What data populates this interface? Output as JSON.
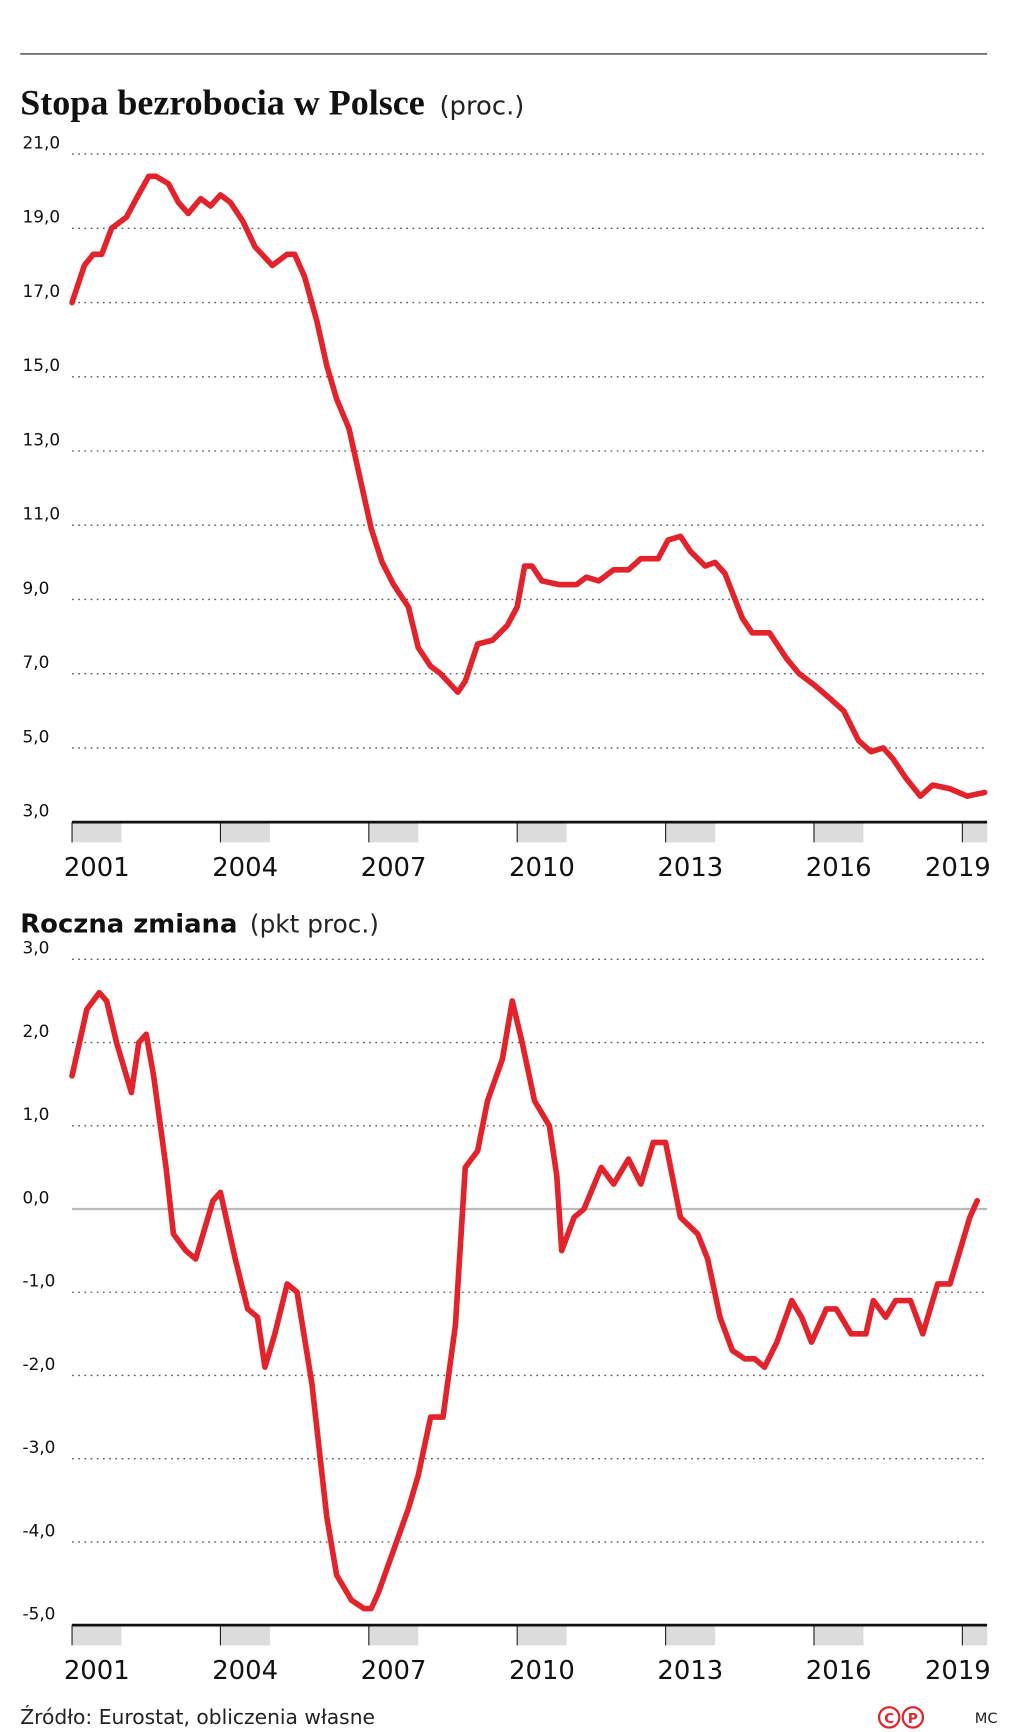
{
  "chart_data": [
    {
      "type": "line",
      "title": "Stopa bezrobocia w Polsce",
      "unit": "(proc.)",
      "color": "#e3232c",
      "grid": true,
      "x": [
        2001.0,
        2001.25,
        2001.43,
        2001.6,
        2001.8,
        2002.1,
        2002.3,
        2002.55,
        2002.7,
        2002.95,
        2003.15,
        2003.35,
        2003.6,
        2003.8,
        2004.0,
        2004.2,
        2004.45,
        2004.7,
        2005.05,
        2005.35,
        2005.5,
        2005.7,
        2005.95,
        2006.15,
        2006.35,
        2006.6,
        2006.8,
        2007.05,
        2007.27,
        2007.5,
        2007.8,
        2008.0,
        2008.25,
        2008.45,
        2008.8,
        2008.95,
        2009.2,
        2009.5,
        2009.8,
        2010.0,
        2010.15,
        2010.3,
        2010.5,
        2010.85,
        2011.2,
        2011.4,
        2011.65,
        2011.95,
        2012.25,
        2012.5,
        2012.85,
        2013.05,
        2013.3,
        2013.5,
        2013.8,
        2014.0,
        2014.2,
        2014.55,
        2014.75,
        2015.1,
        2015.45,
        2015.7,
        2016.0,
        2016.35,
        2016.6,
        2016.9,
        2017.15,
        2017.4,
        2017.6,
        2017.85,
        2018.15,
        2018.4,
        2018.75,
        2019.1,
        2019.45
      ],
      "values": [
        17.0,
        18.0,
        18.3,
        18.3,
        19.0,
        19.3,
        19.8,
        20.4,
        20.4,
        20.2,
        19.7,
        19.4,
        19.8,
        19.6,
        19.9,
        19.7,
        19.2,
        18.5,
        18.0,
        18.3,
        18.3,
        17.7,
        16.5,
        15.3,
        14.4,
        13.6,
        12.4,
        10.9,
        10.0,
        9.4,
        8.8,
        7.7,
        7.2,
        7.0,
        6.5,
        6.8,
        7.8,
        7.9,
        8.3,
        8.8,
        9.9,
        9.9,
        9.5,
        9.4,
        9.4,
        9.6,
        9.5,
        9.8,
        9.8,
        10.1,
        10.1,
        10.6,
        10.7,
        10.3,
        9.9,
        10.0,
        9.7,
        8.5,
        8.1,
        8.1,
        7.4,
        7.0,
        6.7,
        6.3,
        6.0,
        5.2,
        4.9,
        5.0,
        4.7,
        4.2,
        3.7,
        4.0,
        3.9,
        3.7,
        3.8
      ],
      "xlim": [
        2001,
        2019.5
      ],
      "xticks": [
        2001,
        2004,
        2007,
        2010,
        2013,
        2016,
        2019
      ],
      "ylim": [
        3,
        21
      ],
      "yticks": [
        {
          "value": 3,
          "label": "3,0"
        },
        {
          "value": 5,
          "label": "5,0"
        },
        {
          "value": 7,
          "label": "7,0"
        },
        {
          "value": 9,
          "label": "9,0"
        },
        {
          "value": 11,
          "label": "11,0"
        },
        {
          "value": 13,
          "label": "13,0"
        },
        {
          "value": 15,
          "label": "15,0"
        },
        {
          "value": 17,
          "label": "17,0"
        },
        {
          "value": 19,
          "label": "19,0"
        },
        {
          "value": 21,
          "label": "21,0"
        }
      ]
    },
    {
      "type": "line",
      "title": "Roczna zmiana",
      "unit": "(pkt proc.)",
      "color": "#e3232c",
      "grid": true,
      "zero_line": true,
      "x": [
        2001.0,
        2001.3,
        2001.55,
        2001.7,
        2001.9,
        2002.2,
        2002.35,
        2002.5,
        2002.65,
        2002.9,
        2003.05,
        2003.3,
        2003.5,
        2003.85,
        2004.0,
        2004.3,
        2004.55,
        2004.75,
        2004.9,
        2005.1,
        2005.35,
        2005.55,
        2005.85,
        2006.15,
        2006.35,
        2006.65,
        2006.9,
        2007.05,
        2007.2,
        2007.5,
        2007.8,
        2008.0,
        2008.25,
        2008.5,
        2008.75,
        2008.95,
        2009.2,
        2009.4,
        2009.7,
        2009.9,
        2010.1,
        2010.35,
        2010.65,
        2010.8,
        2010.9,
        2011.15,
        2011.35,
        2011.7,
        2011.95,
        2012.25,
        2012.5,
        2012.75,
        2013.0,
        2013.3,
        2013.65,
        2013.85,
        2014.1,
        2014.35,
        2014.6,
        2014.8,
        2015.0,
        2015.25,
        2015.55,
        2015.75,
        2015.95,
        2016.25,
        2016.45,
        2016.75,
        2017.05,
        2017.2,
        2017.45,
        2017.65,
        2017.95,
        2018.2,
        2018.5,
        2018.75,
        2018.95,
        2019.15,
        2019.3
      ],
      "values": [
        1.6,
        2.4,
        2.6,
        2.5,
        2.0,
        1.4,
        2.0,
        2.1,
        1.6,
        0.5,
        -0.3,
        -0.5,
        -0.6,
        0.1,
        0.2,
        -0.6,
        -1.2,
        -1.3,
        -1.9,
        -1.5,
        -0.9,
        -1.0,
        -2.1,
        -3.7,
        -4.4,
        -4.7,
        -4.8,
        -4.8,
        -4.6,
        -4.1,
        -3.6,
        -3.2,
        -2.5,
        -2.5,
        -1.4,
        0.5,
        0.7,
        1.3,
        1.8,
        2.5,
        2.0,
        1.3,
        1.0,
        0.4,
        -0.5,
        -0.1,
        0.0,
        0.5,
        0.3,
        0.6,
        0.3,
        0.8,
        0.8,
        -0.1,
        -0.3,
        -0.6,
        -1.3,
        -1.7,
        -1.8,
        -1.8,
        -1.9,
        -1.6,
        -1.1,
        -1.3,
        -1.6,
        -1.2,
        -1.2,
        -1.5,
        -1.5,
        -1.1,
        -1.3,
        -1.1,
        -1.1,
        -1.5,
        -0.9,
        -0.9,
        -0.5,
        -0.1,
        0.1
      ],
      "xlim": [
        2001,
        2019.5
      ],
      "xticks": [
        2001,
        2004,
        2007,
        2010,
        2013,
        2016,
        2019
      ],
      "ylim": [
        -5,
        3
      ],
      "yticks": [
        {
          "value": -5,
          "label": "-5,0"
        },
        {
          "value": -4,
          "label": "-4,0"
        },
        {
          "value": -3,
          "label": "-3,0"
        },
        {
          "value": -2,
          "label": "-2,0"
        },
        {
          "value": -1,
          "label": "-1,0"
        },
        {
          "value": 0,
          "label": "0,0"
        },
        {
          "value": 1,
          "label": "1,0"
        },
        {
          "value": 2,
          "label": "2,0"
        },
        {
          "value": 3,
          "label": "3,0"
        }
      ]
    }
  ],
  "footer": {
    "source": "Źródło: Eurostat, obliczenia własne",
    "logo": [
      "C",
      "P"
    ],
    "credit": "MC"
  }
}
